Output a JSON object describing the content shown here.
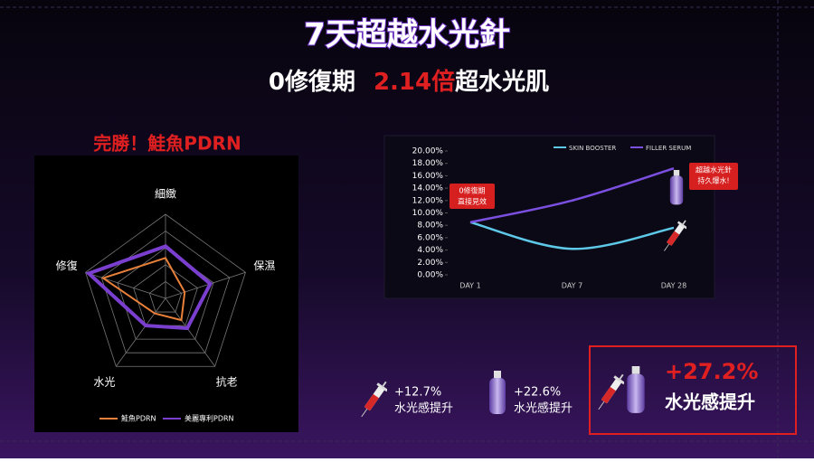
{
  "header": {
    "title": "7天超越水光針",
    "subtitle_parts": [
      "0修復期",
      "2.14倍",
      "超水光肌"
    ]
  },
  "chart_data": [
    {
      "type": "radar",
      "title": "完勝！鮭魚PDRN",
      "categories": [
        "細緻",
        "保濕",
        "抗老",
        "水光",
        "修復"
      ],
      "rlim": [
        0,
        5
      ],
      "rticks": [
        1,
        2,
        3,
        4,
        5
      ],
      "series": [
        {
          "name": "鮭魚PDRN",
          "color": "#e8803a",
          "values": [
            2.4,
            1.2,
            1.6,
            1.1,
            3.9
          ]
        },
        {
          "name": "美麗專利PDRN",
          "color": "#7b3fd0",
          "values": [
            3.1,
            2.8,
            2.2,
            2.0,
            4.8
          ]
        }
      ]
    },
    {
      "type": "line",
      "categories": [
        "DAY 1",
        "DAY 7",
        "DAY 28"
      ],
      "ylim": [
        0,
        20
      ],
      "yticks": [
        {
          "value": 0,
          "label": "0.00%"
        },
        {
          "value": 2,
          "label": "2.00%"
        },
        {
          "value": 4,
          "label": "4.00%"
        },
        {
          "value": 6,
          "label": "6.00%"
        },
        {
          "value": 8,
          "label": "8.00%"
        },
        {
          "value": 10,
          "label": "10.00%"
        },
        {
          "value": 12,
          "label": "12.00%"
        },
        {
          "value": 14,
          "label": "14.00%"
        },
        {
          "value": 16,
          "label": "16.00%"
        },
        {
          "value": 18,
          "label": "18.00%"
        },
        {
          "value": 20,
          "label": "20.00%"
        }
      ],
      "series": [
        {
          "name": "SKIN BOOSTER",
          "color": "#5ec8e8",
          "values": [
            8.5,
            4.2,
            7.6
          ]
        },
        {
          "name": "FILLER SERUM",
          "color": "#7b4fe0",
          "values": [
            8.5,
            12.0,
            17.2
          ]
        }
      ],
      "annotations": [
        [
          "0修復期",
          "直接見效"
        ],
        [
          "超越水光針",
          "持久爆水!"
        ]
      ]
    }
  ],
  "comparison": {
    "items": [
      {
        "value": "+12.7%",
        "label": "水光感提升"
      },
      {
        "value": "+22.6%",
        "label": "水光感提升"
      },
      {
        "value": "+27.2%",
        "label": "水光感提升"
      }
    ]
  }
}
